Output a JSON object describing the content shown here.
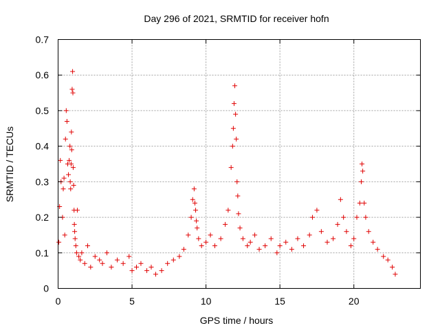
{
  "chart_data": {
    "type": "scatter",
    "title": "Day 296 of 2021, SRMTID for receiver hofn",
    "xlabel": "GPS time / hours",
    "ylabel": "SRMTID / TECUs",
    "xlim": [
      0,
      24.5
    ],
    "ylim": [
      0,
      0.7
    ],
    "x_ticks": [
      0,
      5,
      10,
      15,
      20
    ],
    "x_tick_labels": [
      "0",
      "5",
      "10",
      "15",
      "20"
    ],
    "y_ticks": [
      0,
      0.1,
      0.2,
      0.3,
      0.4,
      0.5,
      0.6,
      0.7
    ],
    "y_tick_labels": [
      "0",
      "0.1",
      "0.2",
      "0.3",
      "0.4",
      "0.5",
      "0.6",
      "0.7"
    ],
    "grid": true,
    "marker": "+",
    "series_color": "#e00000",
    "series": [
      {
        "name": "SRMTID",
        "x": [
          0.05,
          0.1,
          0.15,
          0.2,
          0.3,
          0.35,
          0.4,
          0.45,
          0.5,
          0.55,
          0.6,
          0.65,
          0.7,
          0.75,
          0.8,
          0.82,
          0.85,
          0.88,
          0.9,
          0.92,
          0.95,
          0.98,
          1.0,
          1.02,
          1.05,
          1.08,
          1.1,
          1.12,
          1.15,
          1.2,
          1.25,
          1.3,
          1.4,
          1.5,
          1.6,
          1.8,
          2.0,
          2.2,
          2.5,
          2.8,
          3.0,
          3.3,
          3.6,
          4.0,
          4.4,
          4.8,
          5.0,
          5.3,
          5.6,
          6.0,
          6.3,
          6.6,
          7.0,
          7.4,
          7.8,
          8.2,
          8.5,
          8.8,
          9.0,
          9.1,
          9.2,
          9.25,
          9.3,
          9.35,
          9.4,
          9.5,
          9.7,
          10.0,
          10.3,
          10.6,
          11.0,
          11.3,
          11.5,
          11.7,
          11.8,
          11.85,
          11.9,
          11.95,
          12.0,
          12.05,
          12.1,
          12.15,
          12.2,
          12.3,
          12.5,
          12.8,
          13.0,
          13.3,
          13.6,
          14.0,
          14.4,
          14.8,
          15.0,
          15.4,
          15.8,
          16.2,
          16.6,
          17.0,
          17.2,
          17.5,
          17.8,
          18.2,
          18.6,
          18.9,
          19.1,
          19.3,
          19.5,
          19.8,
          20.0,
          20.2,
          20.4,
          20.5,
          20.55,
          20.6,
          20.7,
          20.8,
          21.0,
          21.3,
          21.6,
          22.0,
          22.3,
          22.6,
          22.8
        ],
        "y": [
          0.13,
          0.23,
          0.36,
          0.3,
          0.2,
          0.28,
          0.31,
          0.15,
          0.42,
          0.5,
          0.47,
          0.35,
          0.32,
          0.36,
          0.4,
          0.3,
          0.28,
          0.35,
          0.44,
          0.39,
          0.56,
          0.61,
          0.55,
          0.34,
          0.29,
          0.22,
          0.18,
          0.16,
          0.14,
          0.12,
          0.1,
          0.22,
          0.09,
          0.08,
          0.1,
          0.07,
          0.12,
          0.06,
          0.09,
          0.08,
          0.07,
          0.1,
          0.06,
          0.08,
          0.07,
          0.09,
          0.05,
          0.06,
          0.07,
          0.05,
          0.06,
          0.04,
          0.05,
          0.07,
          0.08,
          0.09,
          0.11,
          0.15,
          0.2,
          0.25,
          0.28,
          0.24,
          0.22,
          0.19,
          0.17,
          0.14,
          0.12,
          0.13,
          0.15,
          0.12,
          0.14,
          0.18,
          0.22,
          0.34,
          0.4,
          0.45,
          0.52,
          0.57,
          0.49,
          0.42,
          0.3,
          0.26,
          0.21,
          0.17,
          0.14,
          0.12,
          0.13,
          0.15,
          0.11,
          0.12,
          0.14,
          0.1,
          0.12,
          0.13,
          0.11,
          0.14,
          0.12,
          0.15,
          0.2,
          0.22,
          0.16,
          0.13,
          0.14,
          0.18,
          0.25,
          0.2,
          0.16,
          0.12,
          0.14,
          0.2,
          0.24,
          0.3,
          0.35,
          0.33,
          0.24,
          0.2,
          0.16,
          0.13,
          0.11,
          0.09,
          0.08,
          0.06,
          0.04
        ]
      }
    ]
  }
}
